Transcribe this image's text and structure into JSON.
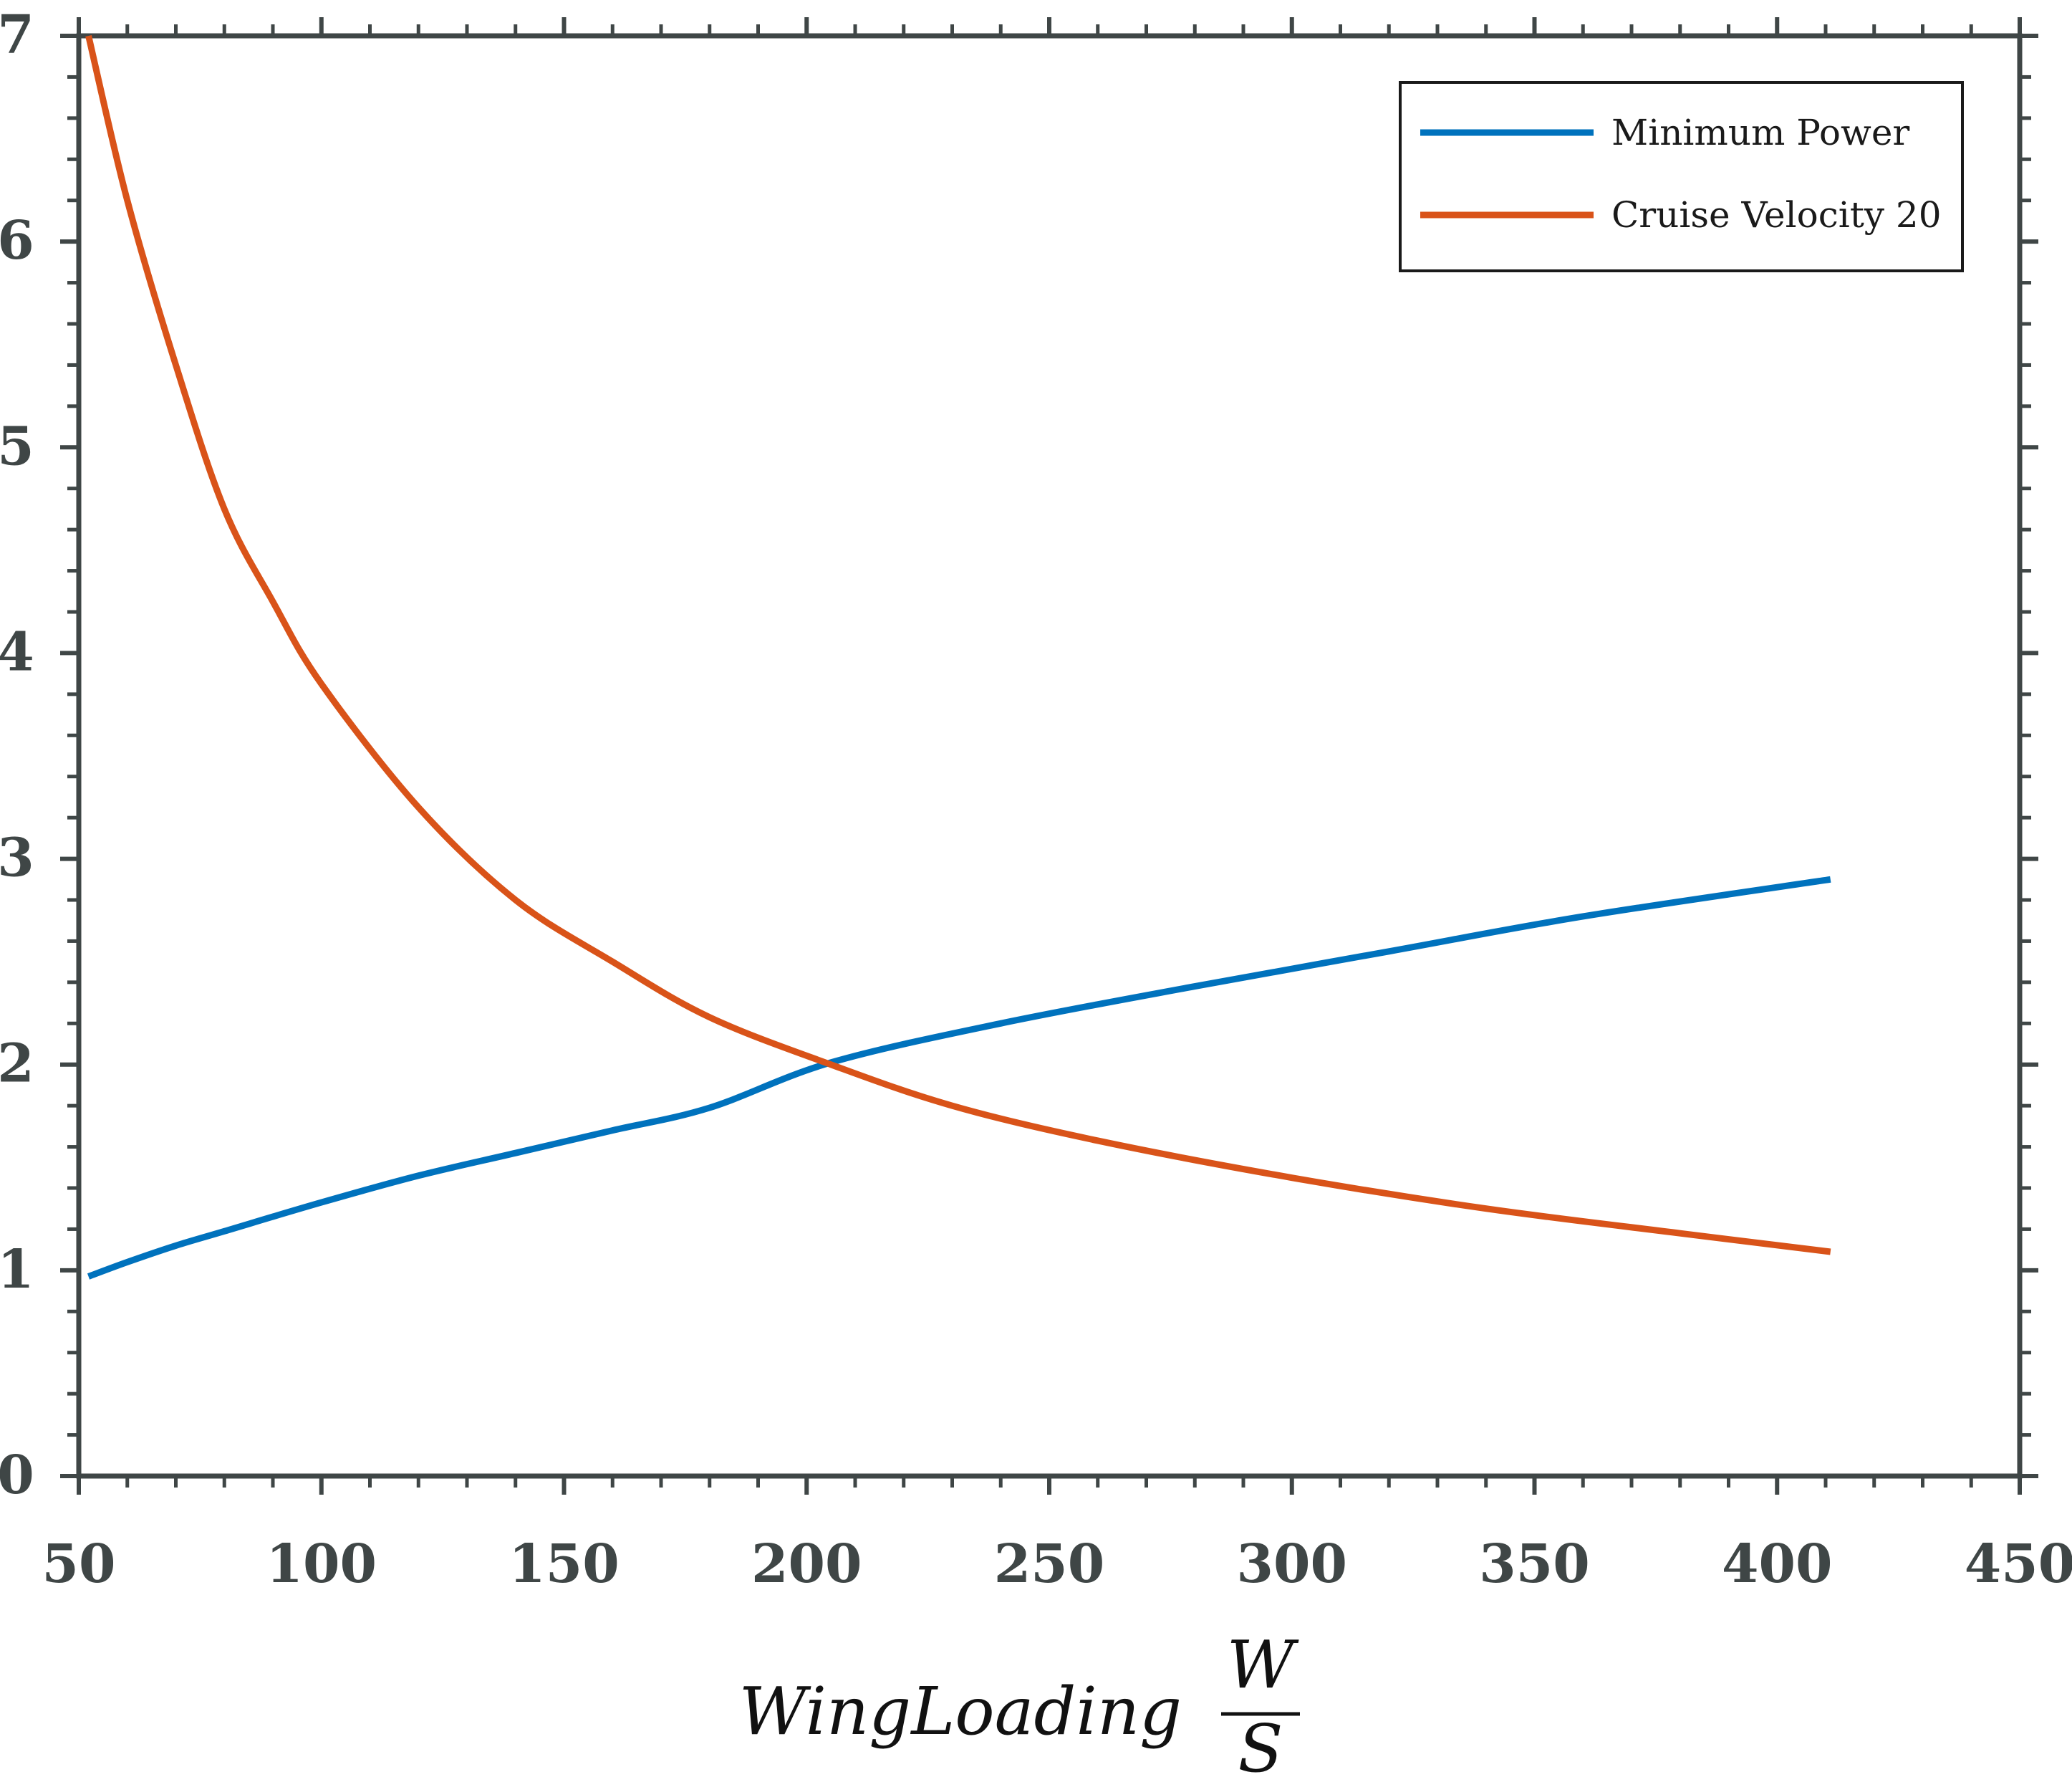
{
  "chart_data": {
    "type": "line",
    "title": "",
    "xlabel": {
      "main": "WingLoading",
      "fraction_numerator": "W",
      "fraction_denominator": "S"
    },
    "ylabel": "",
    "xlim": [
      50,
      450
    ],
    "ylim": [
      0,
      7
    ],
    "x_ticks": [
      "50",
      "100",
      "150",
      "200",
      "250",
      "300",
      "350",
      "400",
      "450"
    ],
    "y_ticks": [
      "0",
      "1",
      "2",
      "3",
      "4",
      "5",
      "6",
      "7"
    ],
    "grid": false,
    "legend_position": "top-right",
    "series": [
      {
        "name": "Minimum Power",
        "color": "#0072bd",
        "x": [
          52,
          60,
          70,
          80,
          100,
          120,
          140,
          160,
          180,
          205,
          240,
          280,
          320,
          360,
          411
        ],
        "y": [
          0.97,
          1.04,
          1.12,
          1.19,
          1.33,
          1.46,
          1.57,
          1.68,
          1.79,
          2.01,
          2.2,
          2.38,
          2.55,
          2.72,
          2.9
        ]
      },
      {
        "name": "Cruise Velocity 20",
        "color": "#d95319",
        "x": [
          52,
          60,
          70,
          80,
          90,
          100,
          120,
          140,
          160,
          180,
          205,
          230,
          260,
          300,
          340,
          380,
          411
        ],
        "y": [
          7.0,
          6.2,
          5.4,
          4.7,
          4.25,
          3.85,
          3.25,
          2.8,
          2.5,
          2.23,
          2.0,
          1.8,
          1.63,
          1.45,
          1.3,
          1.18,
          1.09
        ]
      }
    ]
  }
}
